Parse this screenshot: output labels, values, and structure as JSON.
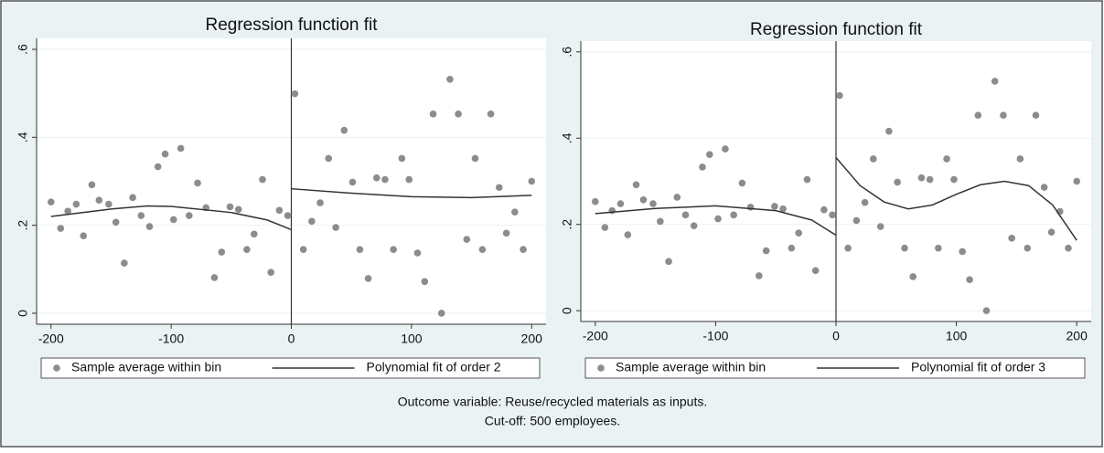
{
  "chart_data": [
    {
      "type": "scatter",
      "title": "Regression function fit",
      "xlim": [
        -212,
        212
      ],
      "ylim": [
        -0.025,
        0.625
      ],
      "xticks": [
        -200,
        -100,
        0,
        100,
        200
      ],
      "yticks": [
        0,
        {
          "value": 0.2,
          "label": ".2"
        },
        {
          "value": 0.4,
          "label": ".4"
        },
        {
          "value": 0.6,
          "label": ".6"
        }
      ],
      "grid": true,
      "vline": 0,
      "series": [
        {
          "name": "Sample average within bin",
          "type": "scatter",
          "color": "#8c8c8c",
          "x": [
            -200,
            -192,
            -186,
            -179,
            -173,
            -166,
            -160,
            -152,
            -146,
            -139,
            -132,
            -125,
            -118,
            -111,
            -105,
            -98,
            -92,
            -85,
            -78,
            -71,
            -64,
            -58,
            -51,
            -44,
            -37,
            -31,
            -24,
            -17,
            -10,
            -3,
            3,
            10,
            17,
            24,
            31,
            37,
            44,
            51,
            57,
            64,
            71,
            78,
            85,
            92,
            98,
            105,
            111,
            118,
            125,
            132,
            139,
            146,
            153,
            159,
            166,
            173,
            179,
            186,
            193,
            200
          ],
          "values": [
            0.253,
            0.193,
            0.232,
            0.248,
            0.176,
            0.292,
            0.257,
            0.248,
            0.207,
            0.114,
            0.263,
            0.222,
            0.197,
            0.333,
            0.362,
            0.213,
            0.375,
            0.222,
            0.296,
            0.24,
            0.081,
            0.139,
            0.242,
            0.236,
            0.145,
            0.18,
            0.304,
            0.093,
            0.234,
            0.222,
            0.499,
            0.145,
            0.209,
            0.251,
            0.352,
            0.195,
            0.416,
            0.298,
            0.145,
            0.079,
            0.308,
            0.304,
            0.145,
            0.352,
            0.304,
            0.137,
            0.072,
            0.453,
            0,
            0.532,
            0.453,
            0.168,
            0.352,
            0.145,
            0.453,
            0.286,
            0.182,
            0.23,
            0.145,
            0.3
          ]
        },
        {
          "name": "Polynomial fit of order 2",
          "type": "line",
          "color": "#333333",
          "x": [
            -200,
            -150,
            -120,
            -100,
            -50,
            -20,
            0,
            0,
            0,
            50,
            100,
            150,
            200
          ],
          "values": [
            0.22,
            0.237,
            0.244,
            0.243,
            0.229,
            0.212,
            0.19,
            null,
            0.283,
            0.273,
            0.265,
            0.263,
            0.268
          ]
        }
      ]
    },
    {
      "type": "scatter",
      "title": "Regression function fit",
      "xlim": [
        -212,
        212
      ],
      "ylim": [
        -0.025,
        0.625
      ],
      "xticks": [
        -200,
        -100,
        0,
        100,
        200
      ],
      "yticks": [
        0,
        {
          "value": 0.2,
          "label": ".2"
        },
        {
          "value": 0.4,
          "label": ".4"
        },
        {
          "value": 0.6,
          "label": ".6"
        }
      ],
      "grid": true,
      "vline": 0,
      "series": [
        {
          "name": "Sample average within bin",
          "type": "scatter",
          "color": "#8c8c8c",
          "x": [
            -200,
            -192,
            -186,
            -179,
            -173,
            -166,
            -160,
            -152,
            -146,
            -139,
            -132,
            -125,
            -118,
            -111,
            -105,
            -98,
            -92,
            -85,
            -78,
            -71,
            -64,
            -58,
            -51,
            -44,
            -37,
            -31,
            -24,
            -17,
            -10,
            -3,
            3,
            10,
            17,
            24,
            31,
            37,
            44,
            51,
            57,
            64,
            71,
            78,
            85,
            92,
            98,
            105,
            111,
            118,
            125,
            132,
            139,
            146,
            153,
            159,
            166,
            173,
            179,
            186,
            193,
            200
          ],
          "values": [
            0.253,
            0.193,
            0.232,
            0.248,
            0.176,
            0.292,
            0.257,
            0.248,
            0.207,
            0.114,
            0.263,
            0.222,
            0.197,
            0.333,
            0.362,
            0.213,
            0.375,
            0.222,
            0.296,
            0.24,
            0.081,
            0.139,
            0.242,
            0.236,
            0.145,
            0.18,
            0.304,
            0.093,
            0.234,
            0.222,
            0.499,
            0.145,
            0.209,
            0.251,
            0.352,
            0.195,
            0.416,
            0.298,
            0.145,
            0.079,
            0.308,
            0.304,
            0.145,
            0.352,
            0.304,
            0.137,
            0.072,
            0.453,
            0,
            0.532,
            0.453,
            0.168,
            0.352,
            0.145,
            0.453,
            0.286,
            0.182,
            0.23,
            0.145,
            0.3
          ]
        },
        {
          "name": "Polynomial fit of order 3",
          "type": "line",
          "color": "#333333",
          "x": [
            -200,
            -150,
            -100,
            -50,
            -20,
            0,
            0,
            0,
            20,
            40,
            60,
            80,
            100,
            120,
            140,
            160,
            180,
            200
          ],
          "values": [
            0.225,
            0.237,
            0.243,
            0.232,
            0.21,
            0.175,
            null,
            0.355,
            0.29,
            0.252,
            0.236,
            0.245,
            0.27,
            0.292,
            0.3,
            0.29,
            0.245,
            0.163
          ]
        }
      ]
    }
  ],
  "notes": [
    "Outcome variable: Reuse/recycled materials as inputs.",
    "Cut-off: 500 employees."
  ]
}
